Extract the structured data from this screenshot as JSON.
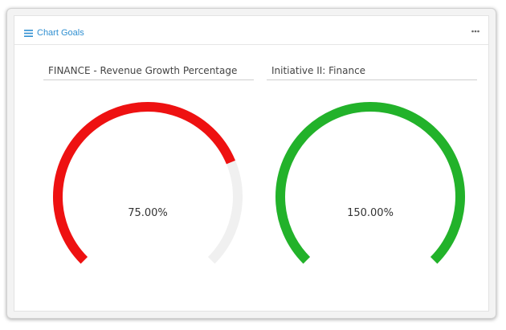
{
  "widget": {
    "title": "Chart Goals",
    "icon": "list-icon",
    "menu_icon": "more-horizontal-icon"
  },
  "goals": [
    {
      "title": "FINANCE - Revenue Growth Percentage",
      "value_label": "75.00%",
      "progress_percent": 75,
      "color": "#ee1111",
      "track_color": "#f0f0f0"
    },
    {
      "title": "Initiative II: Finance",
      "value_label": "150.00%",
      "progress_percent": 150,
      "color": "#22b22a",
      "track_color": "#f0f0f0"
    }
  ]
}
